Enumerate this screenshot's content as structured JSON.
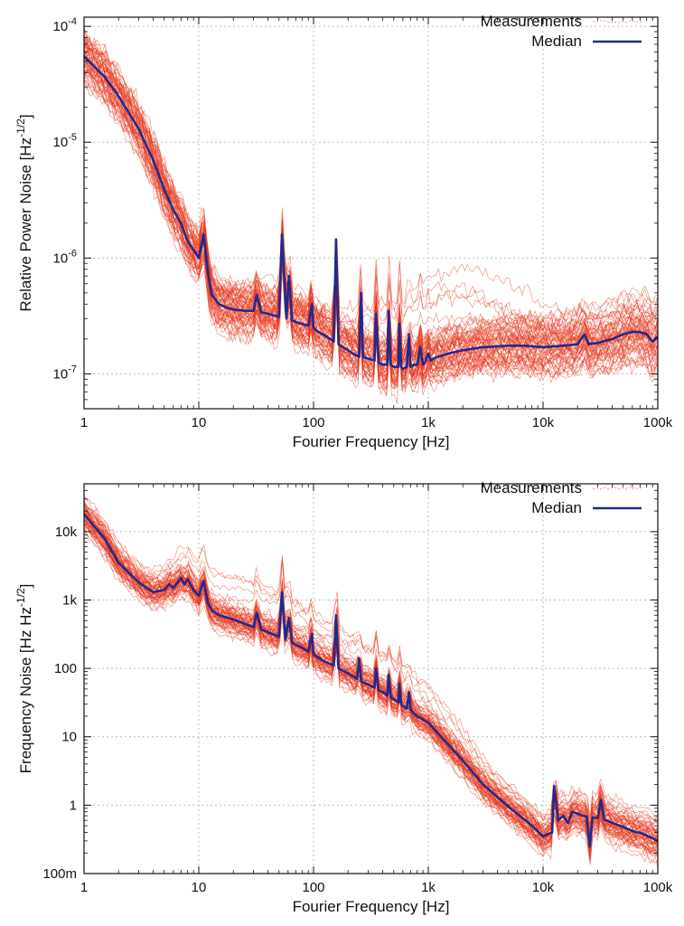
{
  "chart_data": [
    {
      "type": "line",
      "xscale": "log",
      "yscale": "log",
      "xlim": [
        1,
        100000
      ],
      "ylim": [
        5e-08,
        0.00012
      ],
      "grid": true,
      "legend_position": "top-right",
      "xlabel": "Fourier Frequency [Hz]",
      "ylabel": "Relative Power Noise [Hz^-1/2]",
      "xticks": [
        {
          "value": 1,
          "label": "1"
        },
        {
          "value": 10,
          "label": "10"
        },
        {
          "value": 100,
          "label": "100"
        },
        {
          "value": 1000,
          "label": "1k"
        },
        {
          "value": 10000,
          "label": "10k"
        },
        {
          "value": 100000,
          "label": "100k"
        }
      ],
      "yticks": [
        {
          "value": 1e-07,
          "base": "10",
          "exp": "-7"
        },
        {
          "value": 1e-06,
          "base": "10",
          "exp": "-6"
        },
        {
          "value": 1e-05,
          "base": "10",
          "exp": "-5"
        },
        {
          "value": 0.0001,
          "base": "10",
          "exp": "-4"
        }
      ],
      "series": [
        {
          "name": "Median",
          "color": "#1f2a8c",
          "x": [
            1,
            1.5,
            2,
            3,
            4,
            5,
            6,
            7,
            8,
            10,
            11,
            12,
            13,
            15,
            18,
            20,
            25,
            30,
            32,
            35,
            40,
            45,
            50,
            53,
            58,
            61,
            65,
            70,
            80,
            90,
            97,
            100,
            110,
            120,
            140,
            150,
            157,
            165,
            180,
            200,
            220,
            250,
            260,
            270,
            300,
            340,
            350,
            370,
            400,
            440,
            450,
            470,
            500,
            550,
            560,
            580,
            600,
            650,
            680,
            700,
            750,
            800,
            850,
            900,
            950,
            1000,
            1050,
            1100,
            1200,
            1500,
            2000,
            3000,
            5000,
            7000,
            10000,
            15000,
            20000,
            23000,
            25000,
            30000,
            40000,
            50000,
            60000,
            70000,
            80000,
            90000,
            100000
          ],
          "y": [
            5.5e-05,
            3.7e-05,
            2.5e-05,
            1.3e-05,
            7e-06,
            3.9e-06,
            2.6e-06,
            2e-06,
            1.4e-06,
            1e-06,
            1.6e-06,
            7.5e-07,
            4.8e-07,
            4e-07,
            3.7e-07,
            3.6e-07,
            3.5e-07,
            3.5e-07,
            4.8e-07,
            3.4e-07,
            3.3e-07,
            3.2e-07,
            3.1e-07,
            1.6e-06,
            3e-07,
            7e-07,
            2.9e-07,
            2.8e-07,
            2.7e-07,
            2.6e-07,
            4e-07,
            2.5e-07,
            2.3e-07,
            2.2e-07,
            2e-07,
            1.9e-07,
            1.45e-06,
            1.8e-07,
            1.7e-07,
            1.6e-07,
            1.5e-07,
            1.4e-07,
            5e-07,
            1.4e-07,
            1.35e-07,
            1.3e-07,
            3.3e-07,
            1.25e-07,
            1.2e-07,
            1.2e-07,
            3.5e-07,
            1.2e-07,
            1.15e-07,
            1.15e-07,
            2.7e-07,
            1.15e-07,
            1.1e-07,
            1.15e-07,
            2.2e-07,
            1.15e-07,
            1.2e-07,
            1.2e-07,
            1.7e-07,
            1.2e-07,
            1.3e-07,
            1.5e-07,
            1.3e-07,
            1.35e-07,
            1.4e-07,
            1.5e-07,
            1.6e-07,
            1.7e-07,
            1.75e-07,
            1.75e-07,
            1.7e-07,
            1.75e-07,
            1.8e-07,
            2.2e-07,
            1.8e-07,
            1.85e-07,
            2e-07,
            2.2e-07,
            2.3e-07,
            2.3e-07,
            2.2e-07,
            1.9e-07,
            2.1e-07
          ]
        }
      ],
      "measurements": {
        "name": "Measurements",
        "color": "#e8391f",
        "count": 60
      }
    },
    {
      "type": "line",
      "xscale": "log",
      "yscale": "log",
      "xlim": [
        1,
        100000
      ],
      "ylim": [
        0.1,
        50000
      ],
      "grid": true,
      "legend_position": "top-right",
      "xlabel": "Fourier Frequency [Hz]",
      "ylabel": "Frequency Noise [Hz Hz^-1/2]",
      "xticks": [
        {
          "value": 1,
          "label": "1"
        },
        {
          "value": 10,
          "label": "10"
        },
        {
          "value": 100,
          "label": "100"
        },
        {
          "value": 1000,
          "label": "1k"
        },
        {
          "value": 10000,
          "label": "10k"
        },
        {
          "value": 100000,
          "label": "100k"
        }
      ],
      "yticks": [
        {
          "value": 0.1,
          "label": "100m"
        },
        {
          "value": 1,
          "label": "1"
        },
        {
          "value": 10,
          "label": "10"
        },
        {
          "value": 100,
          "label": "100"
        },
        {
          "value": 1000,
          "label": "1k"
        },
        {
          "value": 10000,
          "label": "10k"
        }
      ],
      "series": [
        {
          "name": "Median",
          "color": "#1f2a8c",
          "x": [
            1,
            1.5,
            2,
            3,
            4,
            5,
            5.5,
            6,
            7,
            7.5,
            8,
            9,
            10,
            11,
            12,
            13,
            15,
            20,
            25,
            30,
            32,
            35,
            40,
            45,
            50,
            53,
            57,
            61,
            65,
            70,
            80,
            90,
            97,
            100,
            120,
            150,
            157,
            165,
            200,
            240,
            250,
            260,
            270,
            300,
            340,
            350,
            370,
            400,
            440,
            450,
            470,
            500,
            550,
            560,
            580,
            600,
            650,
            680,
            700,
            750,
            800,
            1000,
            2000,
            3000,
            5000,
            8000,
            10000,
            12000,
            12500,
            13500,
            15000,
            16500,
            18000,
            20000,
            22000,
            24000,
            25500,
            27000,
            30000,
            32000,
            34000,
            40000,
            50000,
            60000,
            65000,
            70000,
            80000,
            100000
          ],
          "y": [
            18000,
            8000,
            3500,
            1800,
            1300,
            1400,
            1700,
            1500,
            2100,
            1700,
            2000,
            1400,
            1150,
            1900,
            900,
            700,
            600,
            520,
            450,
            400,
            650,
            370,
            340,
            310,
            290,
            1300,
            260,
            550,
            240,
            220,
            200,
            175,
            320,
            160,
            130,
            110,
            600,
            100,
            85,
            70,
            140,
            65,
            62,
            58,
            52,
            100,
            48,
            45,
            40,
            80,
            38,
            35,
            32,
            60,
            30,
            28,
            26,
            45,
            25,
            22,
            20,
            16,
            4.5,
            2.0,
            0.95,
            0.5,
            0.35,
            0.4,
            1.9,
            0.6,
            0.7,
            0.55,
            0.8,
            0.75,
            0.7,
            0.68,
            0.25,
            0.66,
            0.65,
            1.2,
            0.62,
            0.55,
            0.48,
            0.42,
            0.4,
            0.4,
            0.36,
            0.3
          ]
        }
      ],
      "measurements": {
        "name": "Measurements",
        "color": "#e8391f",
        "count": 60
      }
    }
  ]
}
